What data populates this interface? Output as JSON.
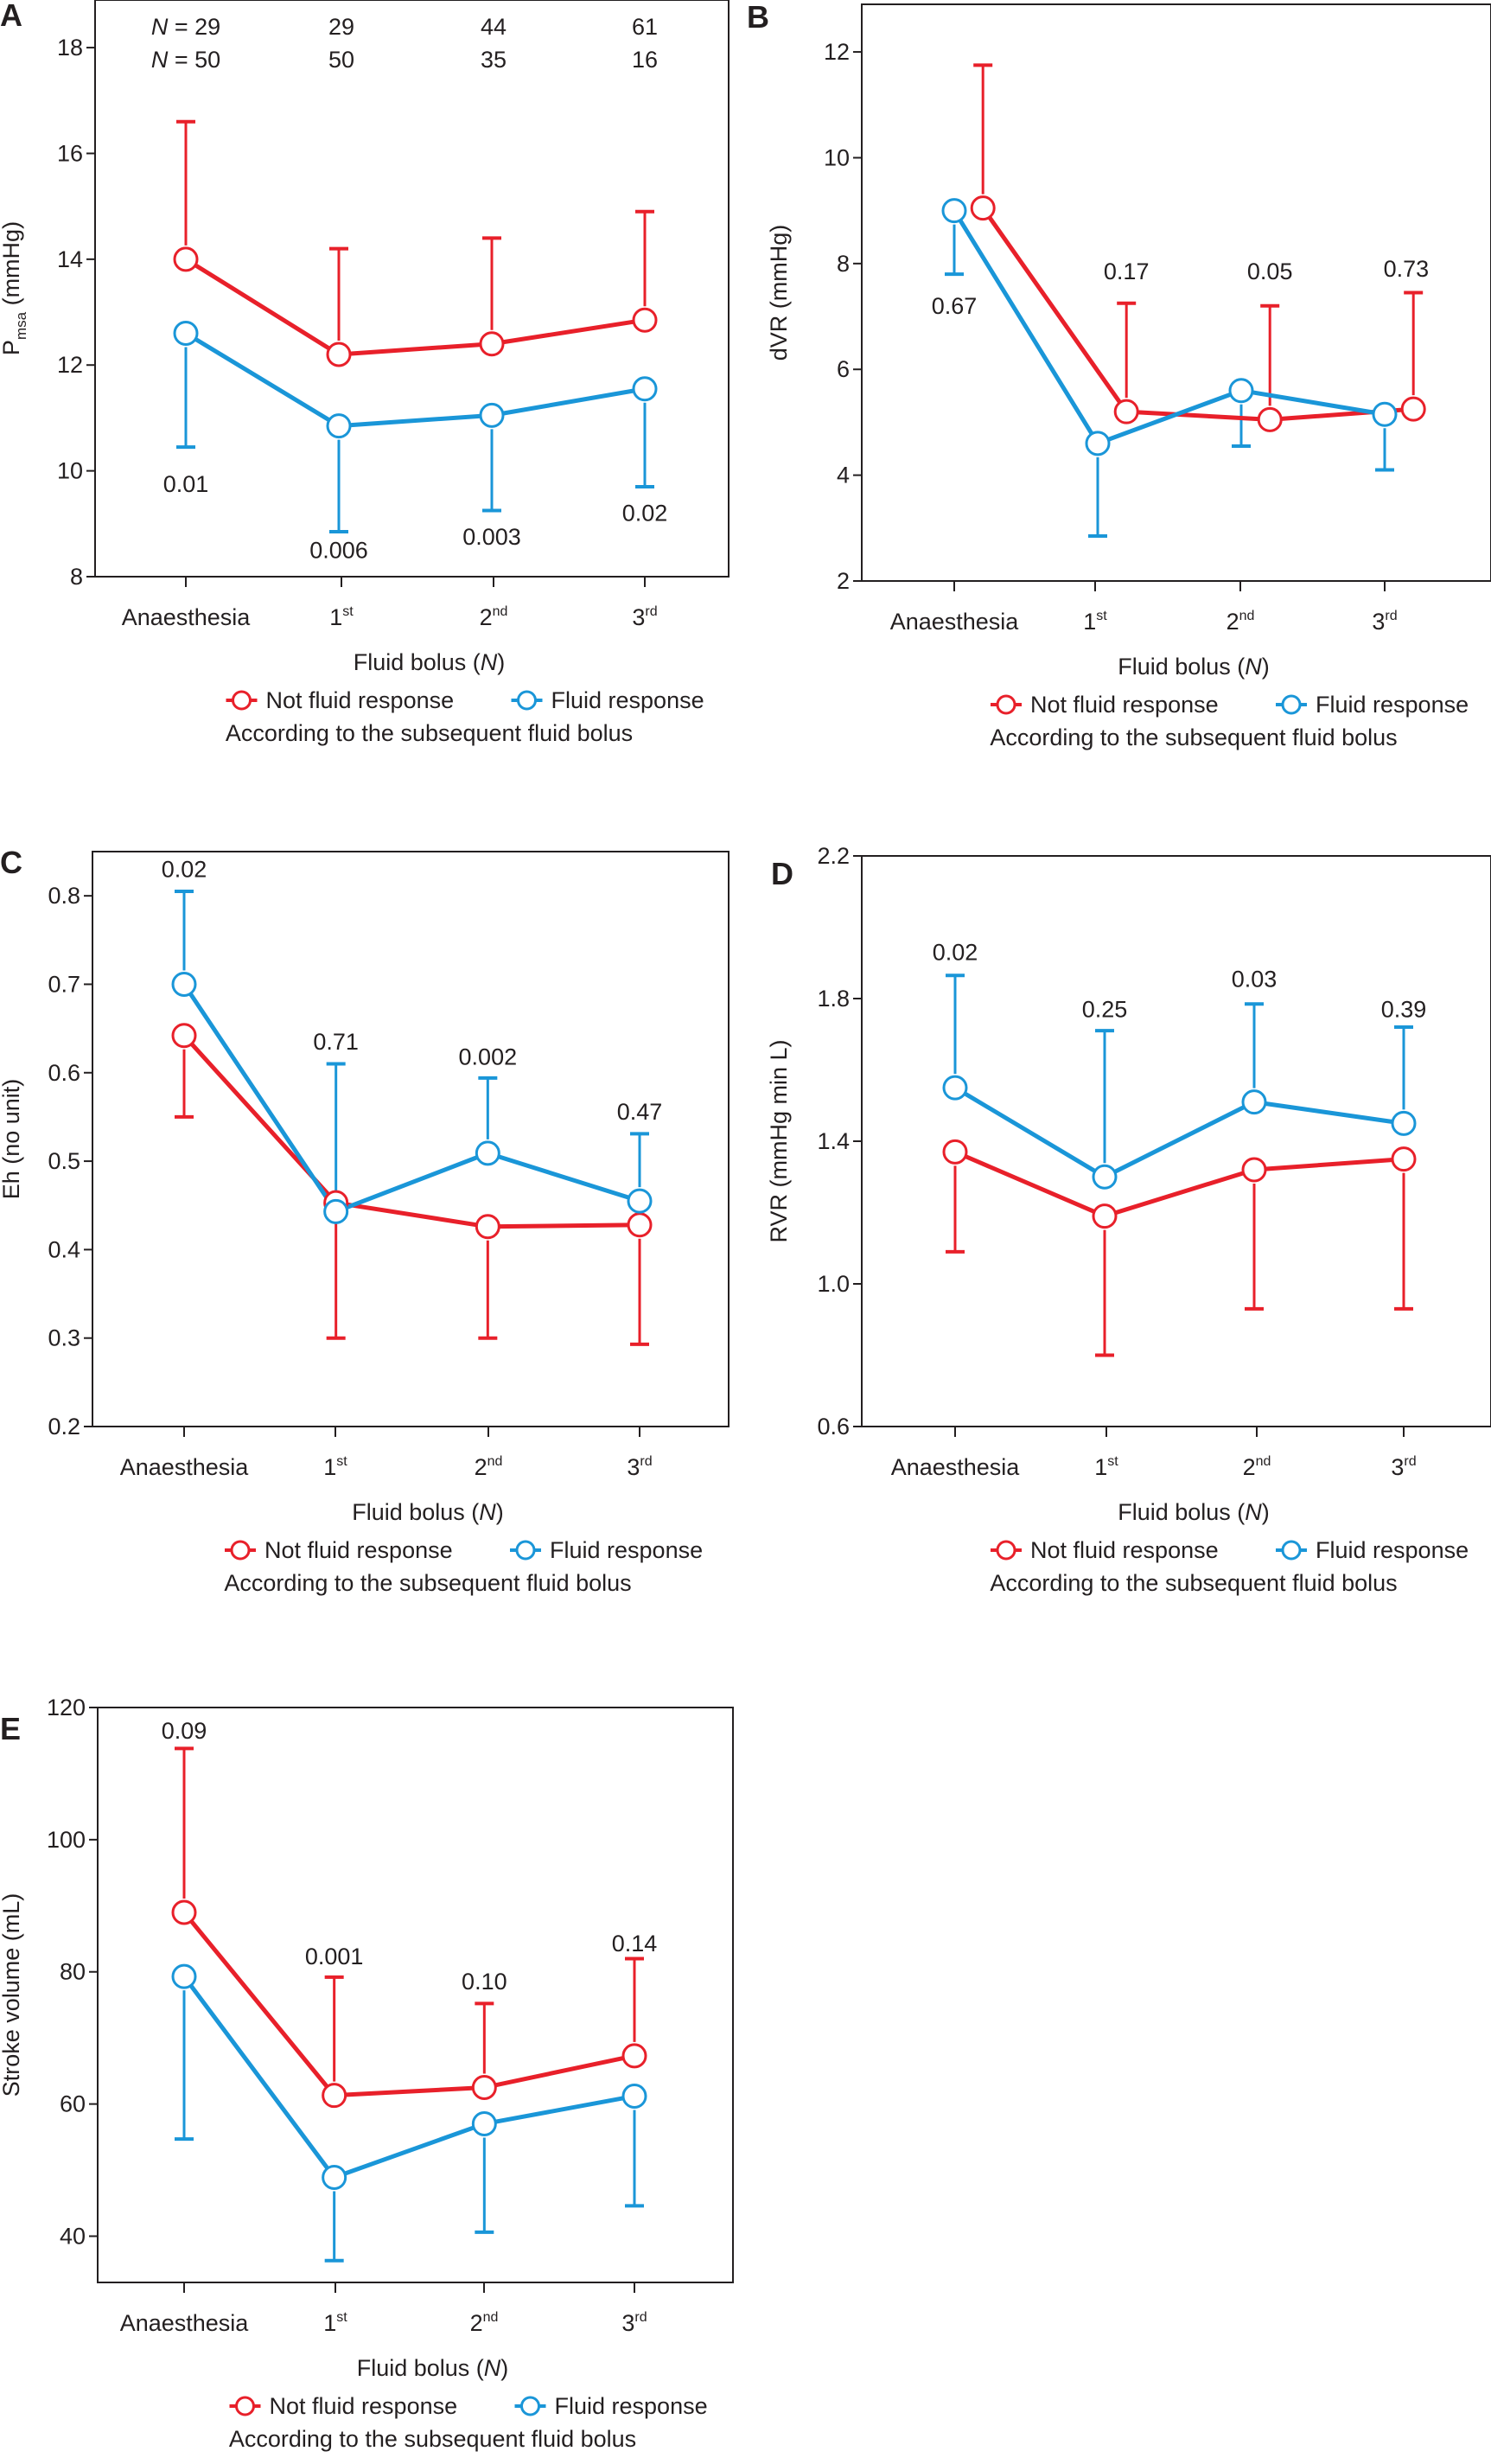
{
  "figure": {
    "colors": {
      "not_fluid_response": "#e8202a",
      "fluid_response": "#1a96d8",
      "axis": "#231f20"
    },
    "legend": {
      "not_fluid_response": "Not fluid response",
      "fluid_response": "Fluid response",
      "note": "According to the subsequent fluid bolus"
    }
  },
  "chart_data": [
    {
      "id": "A",
      "type": "line",
      "panel_label": "A",
      "title": "",
      "xlabel": "Fluid bolus (N)",
      "ylabel": "Pmsa (mmHg)",
      "ylabel_main": "P",
      "ylabel_sub": "msa",
      "ylabel_rest": " (mmHg)",
      "categories": [
        {
          "base": "Anaesthesia",
          "sup": ""
        },
        {
          "base": "1",
          "sup": "st"
        },
        {
          "base": "2",
          "sup": "nd"
        },
        {
          "base": "3",
          "sup": "rd"
        }
      ],
      "ylim": [
        8,
        18.9
      ],
      "yticks": [
        8,
        10,
        12,
        14,
        16,
        18
      ],
      "ytick_labels": [
        "8",
        "10",
        "12",
        "14",
        "16",
        "18"
      ],
      "grid": false,
      "legend_position": "bottom",
      "n_rows": [
        {
          "prefix": "N = ",
          "values": [
            "29",
            "29",
            "44",
            "61"
          ]
        },
        {
          "prefix": "N = ",
          "values": [
            "50",
            "50",
            "35",
            "16"
          ]
        }
      ],
      "series": [
        {
          "name": "Not fluid response",
          "key": "not_fluid_response",
          "values": [
            14.0,
            12.2,
            12.4,
            12.85
          ],
          "error": [
            16.6,
            14.2,
            14.4,
            14.9
          ],
          "x_offset": 0
        },
        {
          "name": "Fluid response",
          "key": "fluid_response",
          "values": [
            12.6,
            10.85,
            11.05,
            11.55
          ],
          "error": [
            10.45,
            8.85,
            9.25,
            9.7
          ],
          "x_offset": 0
        }
      ],
      "p_values": [
        {
          "text": "0.01",
          "at": 9.75,
          "cat": 0
        },
        {
          "text": "0.006",
          "at": 8.5,
          "cat": 1
        },
        {
          "text": "0.003",
          "at": 8.75,
          "cat": 2
        },
        {
          "text": "0.02",
          "at": 9.2,
          "cat": 3
        }
      ]
    },
    {
      "id": "B",
      "type": "line",
      "panel_label": "B",
      "title": "",
      "xlabel": "Fluid bolus (N)",
      "ylabel": "dVR (mmHg)",
      "categories": [
        {
          "base": "Anaesthesia",
          "sup": ""
        },
        {
          "base": "1",
          "sup": "st"
        },
        {
          "base": "2",
          "sup": "nd"
        },
        {
          "base": "3",
          "sup": "rd"
        }
      ],
      "ylim": [
        2,
        12.9
      ],
      "yticks": [
        2,
        4,
        6,
        8,
        10,
        12
      ],
      "ytick_labels": [
        "2",
        "4",
        "6",
        "8",
        "10",
        "12"
      ],
      "grid": false,
      "legend_position": "bottom",
      "series": [
        {
          "name": "Not fluid response",
          "key": "not_fluid_response",
          "values": [
            9.05,
            5.2,
            5.05,
            5.25
          ],
          "error": [
            11.75,
            7.25,
            7.2,
            7.45
          ],
          "x_offset": 0.2
        },
        {
          "name": "Fluid response",
          "key": "fluid_response",
          "values": [
            9.0,
            4.6,
            5.6,
            5.15
          ],
          "error": [
            7.8,
            2.85,
            4.55,
            4.1
          ],
          "x_offset": 0
        }
      ],
      "p_values": [
        {
          "text": "0.67",
          "at": 7.2,
          "cat": 0
        },
        {
          "text": "0.17",
          "at": 7.85,
          "cat": 1.2
        },
        {
          "text": "0.05",
          "at": 7.85,
          "cat": 2.2
        },
        {
          "text": "0.73",
          "at": 7.9,
          "cat": 3.15
        }
      ]
    },
    {
      "id": "C",
      "type": "line",
      "panel_label": "C",
      "title": "",
      "xlabel": "Fluid bolus (N)",
      "ylabel": "Eh (no unit)",
      "categories": [
        {
          "base": "Anaesthesia",
          "sup": ""
        },
        {
          "base": "1",
          "sup": "st"
        },
        {
          "base": "2",
          "sup": "nd"
        },
        {
          "base": "3",
          "sup": "rd"
        }
      ],
      "ylim": [
        0.2,
        0.85
      ],
      "yticks": [
        0.2,
        0.3,
        0.4,
        0.5,
        0.6,
        0.7,
        0.8
      ],
      "ytick_labels": [
        "0.2",
        "0.3",
        "0.4",
        "0.5",
        "0.6",
        "0.7",
        "0.8"
      ],
      "grid": false,
      "legend_position": "bottom",
      "series": [
        {
          "name": "Not fluid response",
          "key": "not_fluid_response",
          "values": [
            0.642,
            0.453,
            0.426,
            0.428
          ],
          "error": [
            0.55,
            0.3,
            0.3,
            0.293
          ],
          "x_offset": 0
        },
        {
          "name": "Fluid response",
          "key": "fluid_response",
          "values": [
            0.7,
            0.443,
            0.509,
            0.455
          ],
          "error": [
            0.805,
            0.61,
            0.594,
            0.531
          ],
          "x_offset": 0
        }
      ],
      "p_values": [
        {
          "text": "0.02",
          "at": 0.83,
          "cat": 0
        },
        {
          "text": "0.71",
          "at": 0.635,
          "cat": 1
        },
        {
          "text": "0.002",
          "at": 0.618,
          "cat": 2
        },
        {
          "text": "0.47",
          "at": 0.556,
          "cat": 3
        }
      ]
    },
    {
      "id": "D",
      "type": "line",
      "panel_label": "D",
      "title": "",
      "xlabel": "Fluid bolus (N)",
      "ylabel": "RVR (mmHg min L)",
      "categories": [
        {
          "base": "Anaesthesia",
          "sup": ""
        },
        {
          "base": "1",
          "sup": "st"
        },
        {
          "base": "2",
          "sup": "nd"
        },
        {
          "base": "3",
          "sup": "rd"
        }
      ],
      "ylim": [
        0.6,
        2.2
      ],
      "yticks": [
        0.6,
        1.0,
        1.4,
        1.8,
        2.2
      ],
      "ytick_labels": [
        "0.6",
        "1.0",
        "1.4",
        "1.8",
        "2.2"
      ],
      "grid": false,
      "legend_position": "bottom",
      "series": [
        {
          "name": "Not fluid response",
          "key": "not_fluid_response",
          "values": [
            1.37,
            1.19,
            1.32,
            1.35
          ],
          "error": [
            1.09,
            0.8,
            0.93,
            0.93
          ],
          "x_offset": 0
        },
        {
          "name": "Fluid response",
          "key": "fluid_response",
          "values": [
            1.55,
            1.3,
            1.51,
            1.45
          ],
          "error": [
            1.865,
            1.71,
            1.785,
            1.72
          ],
          "x_offset": 0
        }
      ],
      "p_values": [
        {
          "text": "0.02",
          "at": 1.93,
          "cat": 0
        },
        {
          "text": "0.25",
          "at": 1.77,
          "cat": 1
        },
        {
          "text": "0.03",
          "at": 1.855,
          "cat": 2
        },
        {
          "text": "0.39",
          "at": 1.77,
          "cat": 3
        }
      ]
    },
    {
      "id": "E",
      "type": "line",
      "panel_label": "E",
      "title": "",
      "xlabel": "Fluid bolus (N)",
      "ylabel": "Stroke volume (mL)",
      "categories": [
        {
          "base": "Anaesthesia",
          "sup": ""
        },
        {
          "base": "1",
          "sup": "st"
        },
        {
          "base": "2",
          "sup": "nd"
        },
        {
          "base": "3",
          "sup": "rd"
        }
      ],
      "ylim": [
        33,
        120
      ],
      "yticks": [
        40,
        60,
        80,
        100,
        120
      ],
      "ytick_labels": [
        "40",
        "60",
        "80",
        "100",
        "120"
      ],
      "grid": false,
      "legend_position": "bottom",
      "series": [
        {
          "name": "Not fluid response",
          "key": "not_fluid_response",
          "values": [
            89,
            61.3,
            62.5,
            67.3
          ],
          "error": [
            113.8,
            79.2,
            75.2,
            82
          ],
          "x_offset": 0
        },
        {
          "name": "Fluid response",
          "key": "fluid_response",
          "values": [
            79.3,
            48.9,
            57,
            61.2
          ],
          "error": [
            54.7,
            36.3,
            40.6,
            44.6
          ],
          "x_offset": 0
        }
      ],
      "p_values": [
        {
          "text": "0.09",
          "at": 116.5,
          "cat": 0
        },
        {
          "text": "0.001",
          "at": 82.3,
          "cat": 1
        },
        {
          "text": "0.10",
          "at": 78.5,
          "cat": 2
        },
        {
          "text": "0.14",
          "at": 84.3,
          "cat": 3
        }
      ]
    }
  ]
}
